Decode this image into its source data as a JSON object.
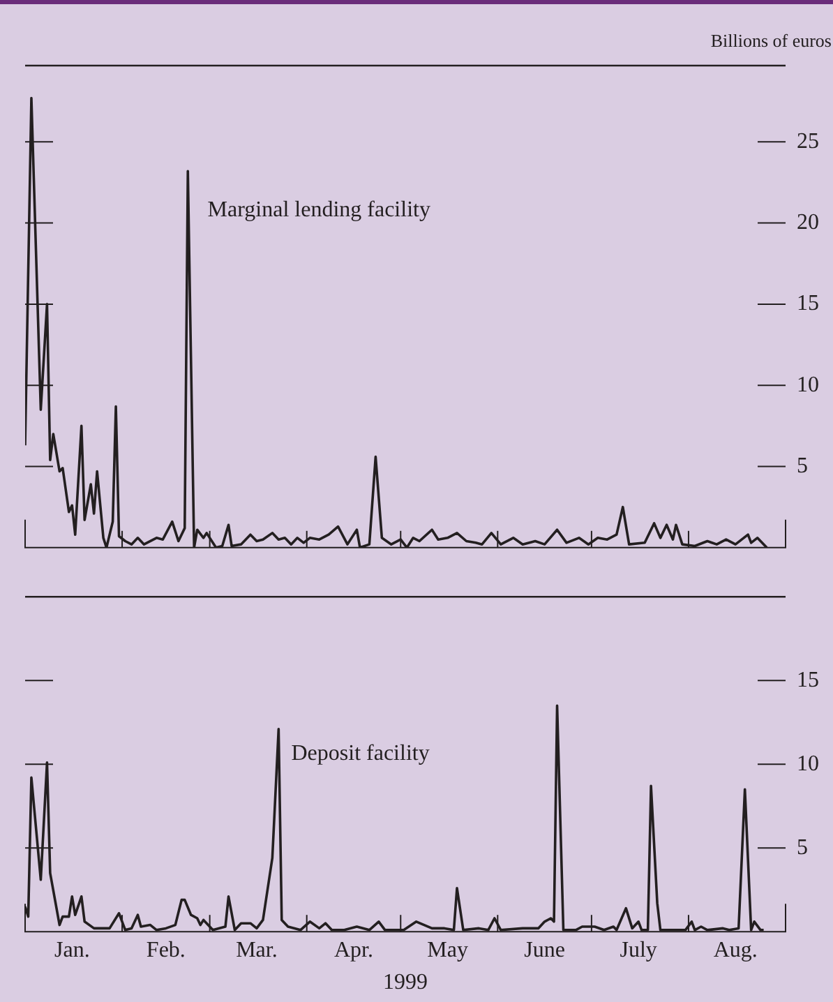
{
  "chart_data": [
    {
      "type": "line",
      "ylabel": "Billions of euros",
      "xlim": [
        "1999-01-01",
        "1999-09-01"
      ],
      "ylim": [
        0,
        29.7
      ],
      "yticks": [
        5,
        10,
        15,
        20,
        25
      ],
      "xticks": [
        {
          "value": "1999-02-01",
          "label": null
        },
        {
          "value": "1999-03-01",
          "label": null
        },
        {
          "value": "1999-04-01",
          "label": null
        },
        {
          "value": "1999-05-01",
          "label": null
        },
        {
          "value": "1999-06-01",
          "label": null
        },
        {
          "value": "1999-07-01",
          "label": null
        },
        {
          "value": "1999-08-01",
          "label": null
        }
      ],
      "tick_labels": "y",
      "legend": false,
      "grid": false,
      "series": [
        {
          "name": "Marginal lending facility",
          "color": "#231f20",
          "x": [
            "1999-01-01",
            "1999-01-03",
            "1999-01-06",
            "1999-01-08",
            "1999-01-09",
            "1999-01-10",
            "1999-01-12",
            "1999-01-13",
            "1999-01-15",
            "1999-01-16",
            "1999-01-17",
            "1999-01-19",
            "1999-01-20",
            "1999-01-22",
            "1999-01-23",
            "1999-01-24",
            "1999-01-26",
            "1999-01-27",
            "1999-01-29",
            "1999-01-30",
            "1999-01-31",
            "1999-02-02",
            "1999-02-04",
            "1999-02-06",
            "1999-02-08",
            "1999-02-12",
            "1999-02-14",
            "1999-02-17",
            "1999-02-19",
            "1999-02-21",
            "1999-02-22",
            "1999-02-24",
            "1999-02-25",
            "1999-02-27",
            "1999-02-28",
            "1999-03-03",
            "1999-03-05",
            "1999-03-07",
            "1999-03-08",
            "1999-03-11",
            "1999-03-14",
            "1999-03-16",
            "1999-03-18",
            "1999-03-21",
            "1999-03-23",
            "1999-03-25",
            "1999-03-27",
            "1999-03-29",
            "1999-03-31",
            "1999-04-02",
            "1999-04-05",
            "1999-04-08",
            "1999-04-11",
            "1999-04-14",
            "1999-04-17",
            "1999-04-18",
            "1999-04-21",
            "1999-04-23",
            "1999-04-25",
            "1999-04-28",
            "1999-05-01",
            "1999-05-03",
            "1999-05-05",
            "1999-05-07",
            "1999-05-11",
            "1999-05-13",
            "1999-05-16",
            "1999-05-19",
            "1999-05-22",
            "1999-05-25",
            "1999-05-27",
            "1999-05-30",
            "1999-06-02",
            "1999-06-06",
            "1999-06-09",
            "1999-06-13",
            "1999-06-16",
            "1999-06-20",
            "1999-06-23",
            "1999-06-27",
            "1999-06-30",
            "1999-07-03",
            "1999-07-06",
            "1999-07-09",
            "1999-07-11",
            "1999-07-13",
            "1999-07-18",
            "1999-07-21",
            "1999-07-23",
            "1999-07-25",
            "1999-07-27",
            "1999-07-28",
            "1999-07-30",
            "1999-08-03",
            "1999-08-07",
            "1999-08-10",
            "1999-08-13",
            "1999-08-16",
            "1999-08-20",
            "1999-08-21",
            "1999-08-23",
            "1999-08-26"
          ],
          "values": [
            6.3,
            27.7,
            8.5,
            15.0,
            5.4,
            7.0,
            4.7,
            4.9,
            2.2,
            2.6,
            0.8,
            7.5,
            1.7,
            3.9,
            2.1,
            4.7,
            0.6,
            0,
            1.6,
            8.7,
            0.7,
            0.4,
            0.2,
            0.6,
            0.2,
            0.6,
            0.5,
            1.6,
            0.4,
            1.2,
            23.2,
            0,
            1.1,
            0.6,
            0.9,
            0,
            0.1,
            1.4,
            0.1,
            0.2,
            0.8,
            0.4,
            0.5,
            0.9,
            0.5,
            0.6,
            0.2,
            0.6,
            0.3,
            0.6,
            0.5,
            0.8,
            1.3,
            0.2,
            1.1,
            0,
            0.2,
            5.6,
            0.6,
            0.2,
            0.5,
            0,
            0.6,
            0.4,
            1.1,
            0.5,
            0.6,
            0.9,
            0.4,
            0.3,
            0.2,
            0.9,
            0.2,
            0.6,
            0.2,
            0.4,
            0.2,
            1.1,
            0.3,
            0.6,
            0.2,
            0.6,
            0.5,
            0.8,
            2.5,
            0.2,
            0.3,
            1.5,
            0.6,
            1.4,
            0.5,
            1.4,
            0.2,
            0.1,
            0.4,
            0.2,
            0.5,
            0.2,
            0.8,
            0.3,
            0.6,
            0
          ]
        }
      ]
    },
    {
      "type": "line",
      "xlabel": "1999",
      "xlim": [
        "1999-01-01",
        "1999-09-01"
      ],
      "ylim": [
        0,
        20
      ],
      "yticks": [
        5,
        10,
        15
      ],
      "xticks": [
        {
          "value": "1999-01-16",
          "label": "Jan."
        },
        {
          "value": "1999-02-01",
          "label": null
        },
        {
          "value": "1999-02-15",
          "label": "Feb."
        },
        {
          "value": "1999-03-01",
          "label": null
        },
        {
          "value": "1999-03-16",
          "label": "Mar."
        },
        {
          "value": "1999-04-01",
          "label": null
        },
        {
          "value": "1999-04-16",
          "label": "Apr."
        },
        {
          "value": "1999-05-01",
          "label": null
        },
        {
          "value": "1999-05-16",
          "label": "May"
        },
        {
          "value": "1999-06-01",
          "label": null
        },
        {
          "value": "1999-06-16",
          "label": "June"
        },
        {
          "value": "1999-07-01",
          "label": null
        },
        {
          "value": "1999-07-16",
          "label": "July"
        },
        {
          "value": "1999-08-01",
          "label": null
        },
        {
          "value": "1999-08-16",
          "label": "Aug."
        }
      ],
      "legend": false,
      "grid": false,
      "series": [
        {
          "name": "Deposit facility",
          "color": "#231f20",
          "x": [
            "1999-01-01",
            "1999-01-02",
            "1999-01-03",
            "1999-01-06",
            "1999-01-08",
            "1999-01-09",
            "1999-01-12",
            "1999-01-13",
            "1999-01-15",
            "1999-01-16",
            "1999-01-17",
            "1999-01-19",
            "1999-01-20",
            "1999-01-23",
            "1999-01-28",
            "1999-01-31",
            "1999-02-02",
            "1999-02-04",
            "1999-02-06",
            "1999-02-07",
            "1999-02-10",
            "1999-02-12",
            "1999-02-15",
            "1999-02-18",
            "1999-02-20",
            "1999-02-21",
            "1999-02-23",
            "1999-02-25",
            "1999-02-26",
            "1999-02-27",
            "1999-03-02",
            "1999-03-06",
            "1999-03-07",
            "1999-03-09",
            "1999-03-11",
            "1999-03-14",
            "1999-03-16",
            "1999-03-18",
            "1999-03-21",
            "1999-03-23",
            "1999-03-24",
            "1999-03-26",
            "1999-03-30",
            "1999-04-02",
            "1999-04-05",
            "1999-04-07",
            "1999-04-09",
            "1999-04-13",
            "1999-04-17",
            "1999-04-21",
            "1999-04-24",
            "1999-04-26",
            "1999-05-02",
            "1999-05-06",
            "1999-05-11",
            "1999-05-15",
            "1999-05-18",
            "1999-05-19",
            "1999-05-21",
            "1999-05-26",
            "1999-05-29",
            "1999-05-31",
            "1999-06-02",
            "1999-06-09",
            "1999-06-14",
            "1999-06-16",
            "1999-06-18",
            "1999-06-19",
            "1999-06-20",
            "1999-06-22",
            "1999-06-26",
            "1999-06-28",
            "1999-07-02",
            "1999-07-05",
            "1999-07-08",
            "1999-07-09",
            "1999-07-12",
            "1999-07-14",
            "1999-07-16",
            "1999-07-17",
            "1999-07-19",
            "1999-07-20",
            "1999-07-22",
            "1999-07-23",
            "1999-07-29",
            "1999-07-31",
            "1999-08-02",
            "1999-08-03",
            "1999-08-05",
            "1999-08-07",
            "1999-08-12",
            "1999-08-14",
            "1999-08-17",
            "1999-08-19",
            "1999-08-21",
            "1999-08-22",
            "1999-08-24",
            "1999-08-25"
          ],
          "values": [
            1.5,
            0.9,
            9.2,
            3.1,
            10.1,
            3.5,
            0.4,
            0.9,
            0.9,
            2.1,
            1.0,
            2.1,
            0.6,
            0.2,
            0.2,
            1.1,
            0.1,
            0.2,
            1.0,
            0.3,
            0.4,
            0.1,
            0.2,
            0.4,
            1.9,
            1.9,
            1.0,
            0.8,
            0.4,
            0.7,
            0.1,
            0.3,
            2.1,
            0.1,
            0.5,
            0.5,
            0.2,
            0.7,
            4.4,
            12.1,
            0.7,
            0.3,
            0.1,
            0.6,
            0.2,
            0.5,
            0.1,
            0.1,
            0.3,
            0.1,
            0.6,
            0.1,
            0.1,
            0.6,
            0.2,
            0.2,
            0.1,
            2.6,
            0.1,
            0.2,
            0.1,
            0.8,
            0.1,
            0.2,
            0.2,
            0.6,
            0.8,
            0.6,
            13.5,
            0.1,
            0.1,
            0.3,
            0.3,
            0.1,
            0.3,
            0.1,
            1.4,
            0.2,
            0.6,
            0.1,
            0.1,
            8.7,
            1.7,
            0.1,
            0.1,
            0.1,
            0.6,
            0.1,
            0.3,
            0.1,
            0.2,
            0.1,
            0.2,
            8.5,
            0.1,
            0.6,
            0.1,
            0.1
          ]
        }
      ]
    }
  ]
}
